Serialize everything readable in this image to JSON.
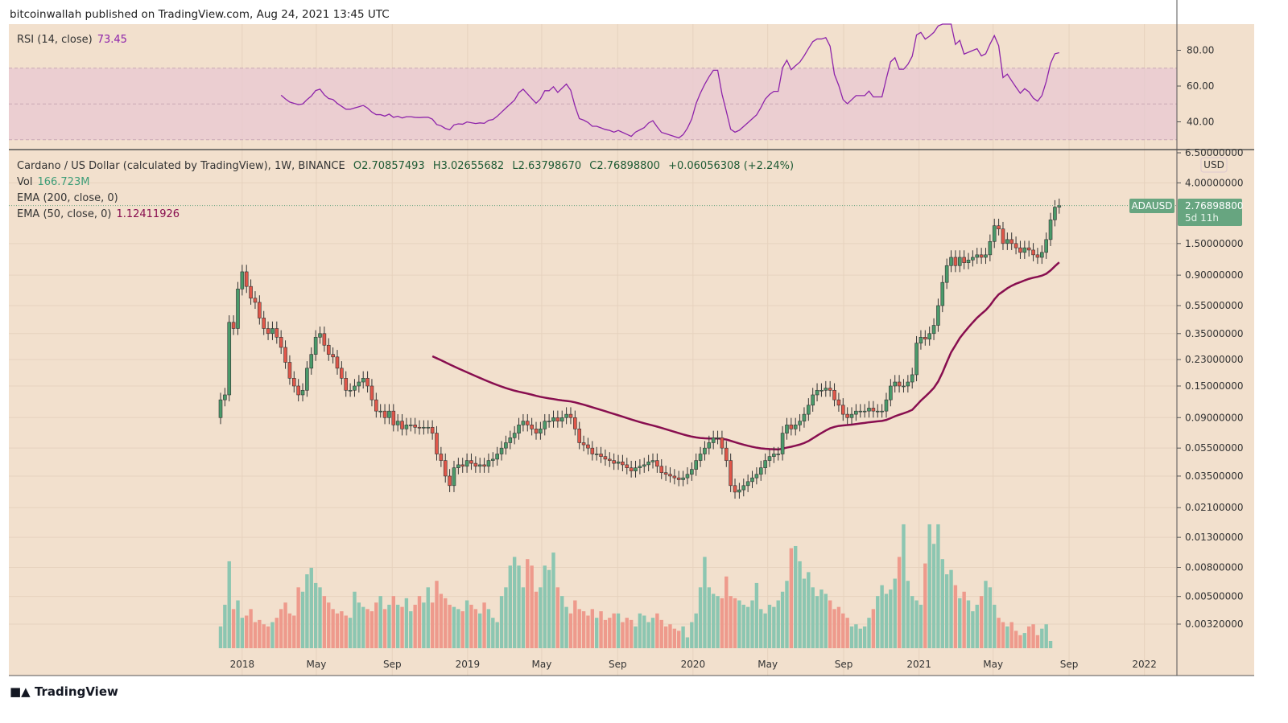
{
  "header": {
    "published": "bitcoinwallah published on TradingView.com, Aug 24, 2021 13:45 UTC"
  },
  "rsi": {
    "label": "RSI (14, close)",
    "value": "73.45",
    "color": "#8e24aa",
    "band_upper": 70,
    "band_lower": 30,
    "ticks": [
      "80.00",
      "60.00",
      "40.00"
    ]
  },
  "legend": {
    "symbol": "Cardano / US Dollar (calculated by TradingView), 1W, BINANCE",
    "open": "O2.70857493",
    "high": "H3.02655682",
    "low": "L2.63798670",
    "close": "C2.76898800",
    "change": "+0.06056308 (+2.24%)",
    "vol_label": "Vol",
    "vol_value": "166.723M",
    "ema200_label": "EMA (200, close, 0)",
    "ema50_label": "EMA (50, close, 0)",
    "ema50_value": "1.12411926"
  },
  "price_axis": {
    "currency": "USD",
    "symbol_tag": "ADAUSD",
    "last_price": "2.76898800",
    "countdown": "5d 11h"
  },
  "footer": {
    "brand": "TradingView"
  },
  "colors": {
    "background": "#f2e0cd",
    "up": "#4a9a6a",
    "down": "#e0574a",
    "vol_up": "#8cc6b1",
    "vol_down": "#ee9a8c",
    "ema50": "#880e4f",
    "rsi_band": "#e8c8d2",
    "last_price_tag": "#67a580"
  },
  "chart_data": {
    "type": "candlestick",
    "interval": "1W",
    "x_start": "2017-11-27",
    "y_scale": "log",
    "ylim": [
      0.0032,
      6.5
    ],
    "y_ticks": [
      "6.50000000",
      "4.00000000",
      "1.50000000",
      "0.90000000",
      "0.55000000",
      "0.35000000",
      "0.23000000",
      "0.15000000",
      "0.09000000",
      "0.05500000",
      "0.03500000",
      "0.02100000",
      "0.01300000",
      "0.00800000",
      "0.00500000",
      "0.00320000"
    ],
    "x_ticks": [
      {
        "label": "2018",
        "date": "2018-01-01"
      },
      {
        "label": "May",
        "date": "2018-05-01"
      },
      {
        "label": "Sep",
        "date": "2018-09-01"
      },
      {
        "label": "2019",
        "date": "2019-01-01"
      },
      {
        "label": "May",
        "date": "2019-05-01"
      },
      {
        "label": "Sep",
        "date": "2019-09-01"
      },
      {
        "label": "2020",
        "date": "2020-01-01"
      },
      {
        "label": "May",
        "date": "2020-05-01"
      },
      {
        "label": "Sep",
        "date": "2020-09-01"
      },
      {
        "label": "2021",
        "date": "2021-01-01"
      },
      {
        "label": "May",
        "date": "2021-05-01"
      },
      {
        "label": "Sep",
        "date": "2021-09-01"
      },
      {
        "label": "2022",
        "date": "2022-01-01"
      }
    ],
    "first_open": 0.09,
    "closes": [
      0.12,
      0.13,
      0.42,
      0.38,
      0.72,
      0.95,
      0.75,
      0.62,
      0.58,
      0.45,
      0.38,
      0.35,
      0.38,
      0.33,
      0.28,
      0.22,
      0.17,
      0.15,
      0.13,
      0.14,
      0.2,
      0.25,
      0.33,
      0.35,
      0.29,
      0.25,
      0.24,
      0.2,
      0.17,
      0.14,
      0.14,
      0.15,
      0.16,
      0.17,
      0.15,
      0.12,
      0.1,
      0.1,
      0.09,
      0.1,
      0.08,
      0.085,
      0.075,
      0.08,
      0.08,
      0.077,
      0.076,
      0.077,
      0.077,
      0.07,
      0.05,
      0.045,
      0.035,
      0.03,
      0.04,
      0.042,
      0.041,
      0.045,
      0.043,
      0.041,
      0.042,
      0.041,
      0.045,
      0.046,
      0.05,
      0.055,
      0.06,
      0.065,
      0.07,
      0.08,
      0.085,
      0.08,
      0.075,
      0.07,
      0.075,
      0.085,
      0.085,
      0.09,
      0.085,
      0.09,
      0.095,
      0.09,
      0.075,
      0.06,
      0.058,
      0.055,
      0.05,
      0.05,
      0.048,
      0.046,
      0.045,
      0.043,
      0.044,
      0.042,
      0.04,
      0.038,
      0.04,
      0.041,
      0.042,
      0.044,
      0.045,
      0.041,
      0.037,
      0.036,
      0.035,
      0.034,
      0.033,
      0.034,
      0.036,
      0.039,
      0.045,
      0.05,
      0.055,
      0.06,
      0.065,
      0.065,
      0.055,
      0.045,
      0.03,
      0.027,
      0.028,
      0.03,
      0.032,
      0.034,
      0.036,
      0.04,
      0.045,
      0.048,
      0.05,
      0.05,
      0.07,
      0.08,
      0.075,
      0.08,
      0.085,
      0.095,
      0.11,
      0.13,
      0.14,
      0.14,
      0.145,
      0.14,
      0.12,
      0.11,
      0.095,
      0.09,
      0.095,
      0.1,
      0.1,
      0.1,
      0.105,
      0.1,
      0.1,
      0.1,
      0.12,
      0.15,
      0.16,
      0.15,
      0.15,
      0.16,
      0.18,
      0.3,
      0.33,
      0.32,
      0.35,
      0.4,
      0.55,
      0.8,
      1.05,
      1.2,
      1.05,
      1.2,
      1.1,
      1.15,
      1.2,
      1.25,
      1.2,
      1.25,
      1.55,
      2.0,
      1.9,
      1.5,
      1.6,
      1.5,
      1.4,
      1.3,
      1.4,
      1.35,
      1.25,
      1.2,
      1.3,
      1.6,
      2.2,
      2.7,
      2.769
    ],
    "volumes_m": [
      500,
      1000,
      2000,
      900,
      1100,
      700,
      750,
      900,
      600,
      650,
      550,
      500,
      600,
      700,
      900,
      1050,
      800,
      750,
      1400,
      1300,
      1700,
      1850,
      1500,
      1400,
      1200,
      1050,
      900,
      800,
      850,
      750,
      700,
      1300,
      1050,
      950,
      900,
      850,
      1050,
      1200,
      900,
      1000,
      1200,
      1000,
      950,
      1150,
      850,
      1000,
      1200,
      1050,
      1400,
      1050,
      1550,
      1250,
      1150,
      1000,
      950,
      900,
      850,
      1100,
      1000,
      900,
      800,
      1050,
      900,
      700,
      600,
      1200,
      1400,
      1900,
      2100,
      1900,
      1400,
      2050,
      1900,
      1300,
      1400,
      1900,
      1800,
      2200,
      1400,
      1200,
      950,
      800,
      1100,
      900,
      850,
      750,
      900,
      700,
      850,
      650,
      700,
      800,
      800,
      600,
      700,
      650,
      500,
      800,
      750,
      600,
      700,
      800,
      650,
      500,
      550,
      450,
      400,
      500,
      250,
      600,
      800,
      1400,
      2100,
      1400,
      1250,
      1200,
      1150,
      1650,
      1200,
      1150,
      1100,
      1000,
      950,
      1100,
      1500,
      900,
      800,
      1000,
      950,
      1100,
      1300,
      1550,
      2300,
      2350,
      2000,
      1600,
      1750,
      1400,
      1200,
      1350,
      1250,
      1100,
      900,
      950,
      800,
      700,
      500,
      550,
      450,
      500,
      700,
      900,
      1200,
      1450,
      1250,
      1350,
      1600,
      2100,
      2850,
      1550,
      1200,
      1100,
      1000,
      1950,
      2850,
      2400,
      2850,
      2050,
      1700,
      1800,
      1450,
      1150,
      1300,
      1100,
      850,
      1000,
      1200,
      1550,
      1400,
      1000,
      700,
      600,
      500,
      600,
      400,
      300,
      350,
      500,
      550,
      300,
      450,
      550,
      167
    ]
  }
}
